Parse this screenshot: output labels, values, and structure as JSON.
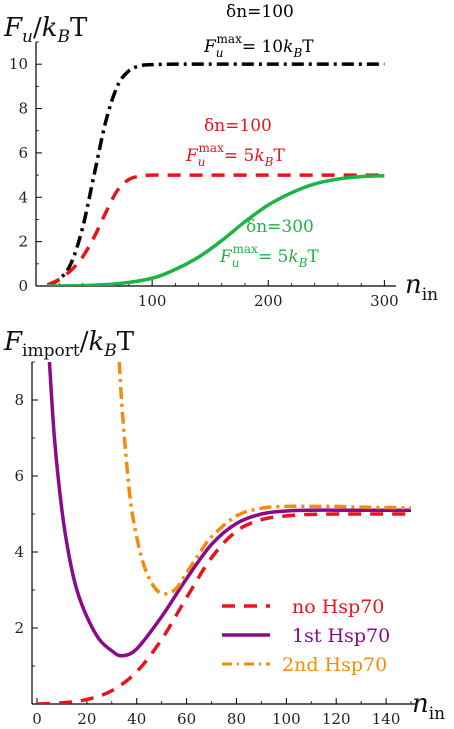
{
  "chart_data": [
    {
      "type": "line",
      "ylabel_main": "F",
      "ylabel_sub": "u",
      "ylabel_sep": "/",
      "ylabel_k": "k",
      "ylabel_ksub": "B",
      "ylabel_T": "T",
      "xlabel_main": "n",
      "xlabel_sub": "in",
      "xlim": [
        0,
        310
      ],
      "ylim": [
        0,
        11
      ],
      "xticks": [
        100,
        200,
        300
      ],
      "yticks": [
        0,
        2,
        4,
        6,
        8,
        10
      ],
      "grid": false,
      "series": [
        {
          "color": "#000000",
          "dash": "dashdot",
          "x": [
            10,
            20,
            30,
            40,
            50,
            60,
            70,
            80,
            90,
            100,
            120,
            150,
            200,
            250,
            300
          ],
          "y": [
            0.05,
            0.3,
            1.0,
            2.6,
            5.0,
            7.4,
            9.0,
            9.7,
            9.93,
            9.98,
            10.0,
            10.0,
            10.0,
            10.0,
            10.0
          ]
        },
        {
          "color": "#e8141b",
          "dash": "dash",
          "x": [
            10,
            20,
            30,
            40,
            50,
            60,
            70,
            80,
            90,
            100,
            120,
            150,
            200,
            250,
            300
          ],
          "y": [
            0.05,
            0.3,
            0.7,
            1.3,
            2.2,
            3.3,
            4.3,
            4.8,
            4.96,
            5.0,
            5.0,
            5.0,
            5.0,
            5.0,
            5.0
          ]
        },
        {
          "color": "#1db345",
          "dash": "solid",
          "x": [
            10,
            40,
            70,
            100,
            120,
            140,
            160,
            180,
            200,
            220,
            240,
            260,
            280,
            300
          ],
          "y": [
            0.0,
            0.02,
            0.1,
            0.35,
            0.75,
            1.3,
            2.05,
            2.9,
            3.65,
            4.2,
            4.6,
            4.82,
            4.93,
            4.97
          ]
        }
      ],
      "annotations": [
        {
          "line1": "δn=100",
          "sup": "max",
          "eq": "= 10",
          "color": "#000000"
        },
        {
          "line1": "δn=100",
          "sup": "max",
          "eq": "= 5",
          "color": "#e8141b"
        },
        {
          "line1": "δn=300",
          "sup": "max",
          "eq": "= 5",
          "color": "#1db345"
        }
      ]
    },
    {
      "type": "line",
      "ylabel_main": "F",
      "ylabel_sub": "import",
      "ylabel_sep": "/",
      "ylabel_k": "k",
      "ylabel_ksub": "B",
      "ylabel_T": "T",
      "xlabel_main": "n",
      "xlabel_sub": "in",
      "xlim": [
        -2,
        152
      ],
      "ylim": [
        0,
        9
      ],
      "xticks": [
        0,
        20,
        40,
        60,
        80,
        100,
        120,
        140
      ],
      "yticks": [
        2,
        4,
        6,
        8
      ],
      "grid": false,
      "legend_position": "bottom-right",
      "series": [
        {
          "name": "no Hsp70",
          "color": "#e8141b",
          "dash": "dash",
          "x": [
            0,
            10,
            20,
            30,
            40,
            50,
            60,
            70,
            80,
            90,
            100,
            110,
            120,
            130,
            140,
            150
          ],
          "y": [
            0.0,
            0.03,
            0.12,
            0.35,
            0.85,
            1.7,
            2.8,
            3.85,
            4.55,
            4.85,
            4.95,
            4.99,
            5.0,
            5.0,
            5.0,
            5.0
          ]
        },
        {
          "name": "1st Hsp70",
          "color": "#8b0a8b",
          "dash": "solid",
          "x": [
            5,
            7,
            10,
            13,
            16,
            20,
            25,
            30,
            34,
            40,
            50,
            60,
            70,
            80,
            90,
            100,
            110,
            120,
            130,
            140,
            150
          ],
          "y": [
            9.0,
            7.0,
            5.1,
            3.85,
            3.0,
            2.3,
            1.7,
            1.4,
            1.27,
            1.45,
            2.3,
            3.3,
            4.2,
            4.75,
            5.0,
            5.08,
            5.1,
            5.1,
            5.1,
            5.1,
            5.1
          ]
        },
        {
          "name": "2nd Hsp70",
          "color": "#f58a0b",
          "dash": "dashdot",
          "x": [
            33,
            34,
            36,
            38,
            41,
            44,
            48,
            52,
            56,
            60,
            65,
            70,
            80,
            90,
            100,
            110,
            120,
            130,
            140,
            150
          ],
          "y": [
            9.0,
            7.9,
            6.3,
            5.1,
            4.1,
            3.45,
            3.0,
            2.9,
            3.05,
            3.45,
            3.95,
            4.4,
            4.95,
            5.15,
            5.2,
            5.2,
            5.2,
            5.18,
            5.17,
            5.16
          ]
        }
      ]
    }
  ]
}
